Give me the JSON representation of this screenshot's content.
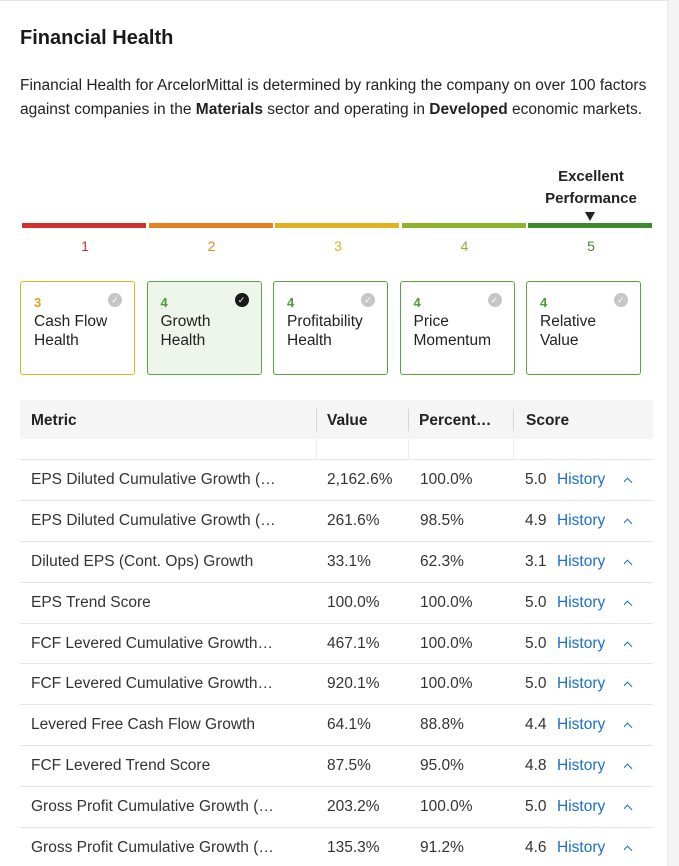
{
  "title": "Financial Health",
  "intro": {
    "p1": "Financial Health for ArcelorMittal is determined by ranking the company on over 100 factors against companies in the ",
    "sector": "Materials",
    "p2": " sector and operating in ",
    "market": "Developed",
    "p3": " economic markets."
  },
  "performance": {
    "label_line1": "Excellent",
    "label_line2": "Performance"
  },
  "scale": [
    {
      "num": "1",
      "color": "#d0312d"
    },
    {
      "num": "2",
      "color": "#e6831e"
    },
    {
      "num": "3",
      "color": "#e0b21d"
    },
    {
      "num": "4",
      "color": "#8bb42a"
    },
    {
      "num": "5",
      "color": "#3d8b2e"
    }
  ],
  "cards": [
    {
      "score": "3",
      "line1": "Cash Flow",
      "line2": "Health",
      "color": "#d8a41a"
    },
    {
      "score": "4",
      "line1": "Growth",
      "line2": "Health",
      "color": "#4e9a34"
    },
    {
      "score": "4",
      "line1": "Profitability",
      "line2": "Health",
      "color": "#4e9a34"
    },
    {
      "score": "4",
      "line1": "Price",
      "line2": "Momentum",
      "color": "#4e9a34"
    },
    {
      "score": "4",
      "line1": "Relative",
      "line2": "Value",
      "color": "#4e9a34"
    }
  ],
  "table": {
    "headers": {
      "metric": "Metric",
      "value": "Value",
      "percentile": "Percent…",
      "score": "Score"
    },
    "history_label": "History",
    "rows": [
      {
        "metric": "EPS Diluted Cumulative Growth (…",
        "value": "2,162.6%",
        "percentile": "100.0%",
        "score": "5.0"
      },
      {
        "metric": "EPS Diluted Cumulative Growth (…",
        "value": "261.6%",
        "percentile": "98.5%",
        "score": "4.9"
      },
      {
        "metric": "Diluted EPS (Cont. Ops) Growth",
        "value": "33.1%",
        "percentile": "62.3%",
        "score": "3.1"
      },
      {
        "metric": "EPS Trend Score",
        "value": "100.0%",
        "percentile": "100.0%",
        "score": "5.0"
      },
      {
        "metric": "FCF Levered Cumulative Growth…",
        "value": "467.1%",
        "percentile": "100.0%",
        "score": "5.0"
      },
      {
        "metric": "FCF Levered Cumulative Growth…",
        "value": "920.1%",
        "percentile": "100.0%",
        "score": "5.0"
      },
      {
        "metric": "Levered Free Cash Flow Growth",
        "value": "64.1%",
        "percentile": "88.8%",
        "score": "4.4"
      },
      {
        "metric": "FCF Levered Trend Score",
        "value": "87.5%",
        "percentile": "95.0%",
        "score": "4.8"
      },
      {
        "metric": "Gross Profit Cumulative Growth (…",
        "value": "203.2%",
        "percentile": "100.0%",
        "score": "5.0"
      },
      {
        "metric": "Gross Profit Cumulative Growth (…",
        "value": "135.3%",
        "percentile": "91.2%",
        "score": "4.6"
      }
    ]
  }
}
